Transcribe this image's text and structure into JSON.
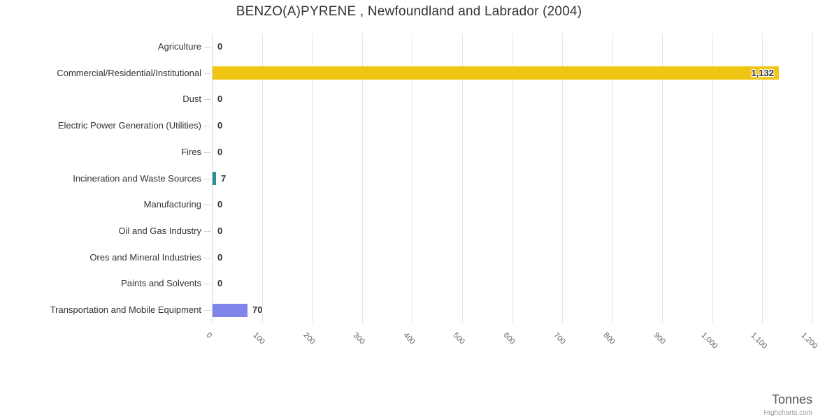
{
  "title": "BENZO(A)PYRENE , Newfoundland and Labrador (2004)",
  "chart_data": {
    "type": "bar",
    "orientation": "horizontal",
    "title": "BENZO(A)PYRENE , Newfoundland and Labrador (2004)",
    "categories": [
      "Agriculture",
      "Commercial/Residential/Institutional",
      "Dust",
      "Electric Power Generation (Utilities)",
      "Fires",
      "Incineration and Waste Sources",
      "Manufacturing",
      "Oil and Gas Industry",
      "Ores and Mineral Industries",
      "Paints and Solvents",
      "Transportation and Mobile Equipment"
    ],
    "values": [
      0,
      1132,
      0,
      0,
      0,
      7,
      0,
      0,
      0,
      0,
      70
    ],
    "value_labels": [
      "0",
      "1,132",
      "0",
      "0",
      "0",
      "7",
      "0",
      "0",
      "0",
      "0",
      "70"
    ],
    "point_colors": [
      null,
      "#F0C514",
      null,
      null,
      null,
      "#2B908F",
      null,
      null,
      null,
      null,
      "#8085E9"
    ],
    "xlabel": "Tonnes",
    "xlim": [
      0,
      1200
    ],
    "x_tick_interval": 100,
    "x_tick_labels": [
      "0",
      "100",
      "200",
      "300",
      "400",
      "500",
      "600",
      "700",
      "800",
      "900",
      "1,000",
      "1,100",
      "1,200"
    ],
    "x_tick_label_rotation_deg": 45,
    "grid": true,
    "legend": false
  },
  "colors": {
    "bar_gold": "#F0C514",
    "bar_teal": "#2B908F",
    "bar_purple": "#8085E9",
    "grid": "#E6E6E6",
    "axis_line": "#CCD6EB",
    "title_text": "#333333",
    "category_text": "#333333",
    "value_label_text": "#333333",
    "x_tick_text": "#666666",
    "axis_title_text": "#555555",
    "credits_text": "#999999"
  },
  "credits": {
    "label": "Highcharts.com"
  }
}
